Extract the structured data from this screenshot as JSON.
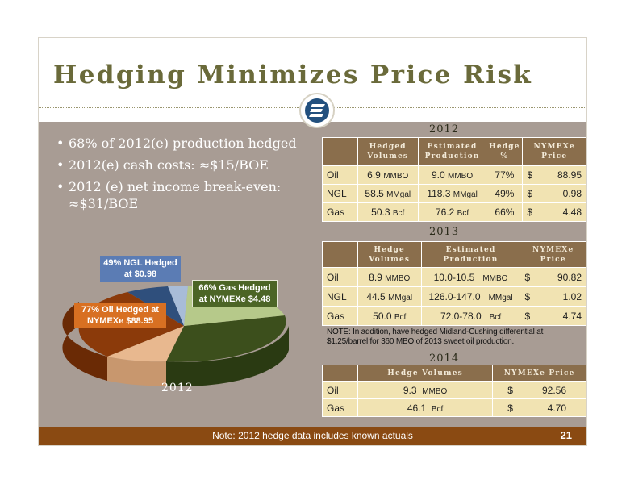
{
  "title": "Hedging Minimizes Price Risk",
  "bullets": [
    "68% of 2012(e) production hedged",
    "2012(e) cash costs: ≈$15/BOE",
    "2012 (e) net income break-even: ≈$31/BOE"
  ],
  "pie": {
    "year": "2012",
    "labels": {
      "ngl": "49% NGL Hedged at $0.98",
      "gas": "66% Gas Hedged at NYMEXe $4.48",
      "oil": "77% Oil Hedged at NYMEXe $88.95"
    }
  },
  "table_2012": {
    "year": "2012",
    "headers": [
      "",
      "Hedged Volumes",
      "Estimated Production",
      "Hedge %",
      "NYMEXe Price"
    ],
    "rows": [
      {
        "product": "Oil",
        "hedged": "6.9",
        "hedged_unit": "MMBO",
        "est": "9.0",
        "est_unit": "MMBO",
        "pct": "77%",
        "currency": "$",
        "price": "88.95"
      },
      {
        "product": "NGL",
        "hedged": "58.5",
        "hedged_unit": "MMgal",
        "est": "118.3",
        "est_unit": "MMgal",
        "pct": "49%",
        "currency": "$",
        "price": "0.98"
      },
      {
        "product": "Gas",
        "hedged": "50.3",
        "hedged_unit": "Bcf",
        "est": "76.2",
        "est_unit": "Bcf",
        "pct": "66%",
        "currency": "$",
        "price": "4.48"
      }
    ]
  },
  "table_2013": {
    "year": "2013",
    "headers": [
      "",
      "Hedge Volumes",
      "Estimated Production",
      "NYMEXe Price"
    ],
    "rows": [
      {
        "product": "Oil",
        "hedged": "8.9",
        "hedged_unit": "MMBO",
        "est": "10.0-10.5",
        "est_unit": "MMBO",
        "currency": "$",
        "price": "90.82"
      },
      {
        "product": "NGL",
        "hedged": "44.5",
        "hedged_unit": "MMgal",
        "est": "126.0-147.0",
        "est_unit": "MMgal",
        "currency": "$",
        "price": "1.02"
      },
      {
        "product": "Gas",
        "hedged": "50.0",
        "hedged_unit": "Bcf",
        "est": "72.0-78.0",
        "est_unit": "Bcf",
        "currency": "$",
        "price": "4.74"
      }
    ],
    "note": "NOTE: In addition, have hedged Midland-Cushing differential at $1.25/barrel for 360 MBO of 2013 sweet oil production."
  },
  "table_2014": {
    "year": "2014",
    "headers": [
      "",
      "Hedge Volumes",
      "NYMEXe Price"
    ],
    "rows": [
      {
        "product": "Oil",
        "hedged": "9.3",
        "hedged_unit": "MMBO",
        "currency": "$",
        "price": "92.56"
      },
      {
        "product": "Gas",
        "hedged": "46.1",
        "hedged_unit": "Bcf",
        "currency": "$",
        "price": "4.70"
      }
    ]
  },
  "footer": {
    "note": "Note: 2012 hedge data includes known actuals",
    "page": "21"
  },
  "colors": {
    "title": "#6a6a3a",
    "panel": "#a89c94",
    "footer": "#8a4a12",
    "table_header": "#8a6e4c",
    "table_cell": "#f1e3b2",
    "oil_hedged": "#8b3a0a",
    "oil_unhedged": "#e8b88f",
    "gas_hedged": "#3c4f1c",
    "gas_unhedged": "#b6c98a",
    "ngl_hedged": "#2f4f7c",
    "ngl_unhedged": "#a8bcd8"
  },
  "icons": {
    "logo": "company-logo-icon"
  }
}
